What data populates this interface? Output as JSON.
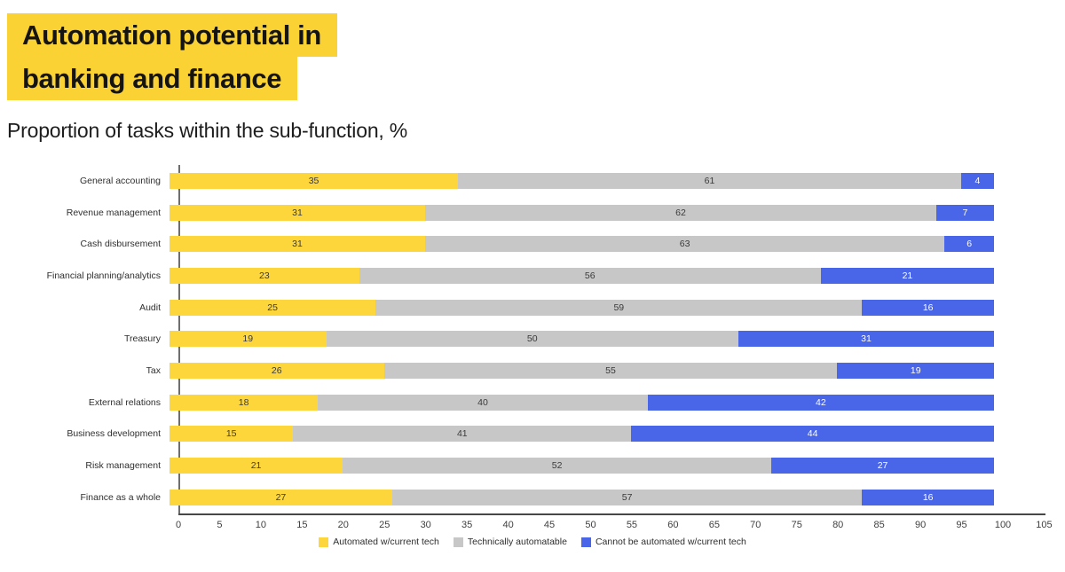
{
  "page": {
    "title_line1": "Automation potential in",
    "title_line2": "banking and finance",
    "subtitle": "Proportion of tasks within the sub-function, %"
  },
  "colors": {
    "title_highlight": "#FAD234",
    "automated": "#FDD63C",
    "technically_automatable": "#C7C7C7",
    "cannot_be_automated": "#4A66E8",
    "axis_line": "#474747",
    "value_label_dark": "#3a3a3a",
    "value_label_light": "#ffffff"
  },
  "chart_data": {
    "type": "bar",
    "orientation": "horizontal",
    "stacked": true,
    "title": "Automation potential in banking and finance",
    "subtitle": "Proportion of tasks within the sub-function, %",
    "categories": [
      "General accounting",
      "Revenue management",
      "Cash disbursement",
      "Financial planning/analytics",
      "Audit",
      "Treasury",
      "Tax",
      "External relations",
      "Business development",
      "Risk management",
      "Finance as a whole"
    ],
    "series": [
      {
        "name": "Automated w/current tech",
        "color": "#FDD63C",
        "values": [
          35,
          31,
          31,
          23,
          25,
          19,
          26,
          18,
          15,
          21,
          27
        ]
      },
      {
        "name": "Technically automatable",
        "color": "#C7C7C7",
        "values": [
          61,
          62,
          63,
          56,
          59,
          50,
          55,
          40,
          41,
          52,
          57
        ]
      },
      {
        "name": "Cannot be automated w/current tech",
        "color": "#4A66E8",
        "values": [
          4,
          7,
          6,
          21,
          16,
          31,
          19,
          42,
          44,
          27,
          16
        ]
      }
    ],
    "xlim": [
      0,
      105
    ],
    "xticks": [
      0,
      5,
      10,
      15,
      20,
      25,
      30,
      35,
      40,
      45,
      50,
      55,
      60,
      65,
      70,
      75,
      80,
      85,
      90,
      95,
      100,
      105
    ],
    "grid": false,
    "legend_position": "bottom"
  }
}
